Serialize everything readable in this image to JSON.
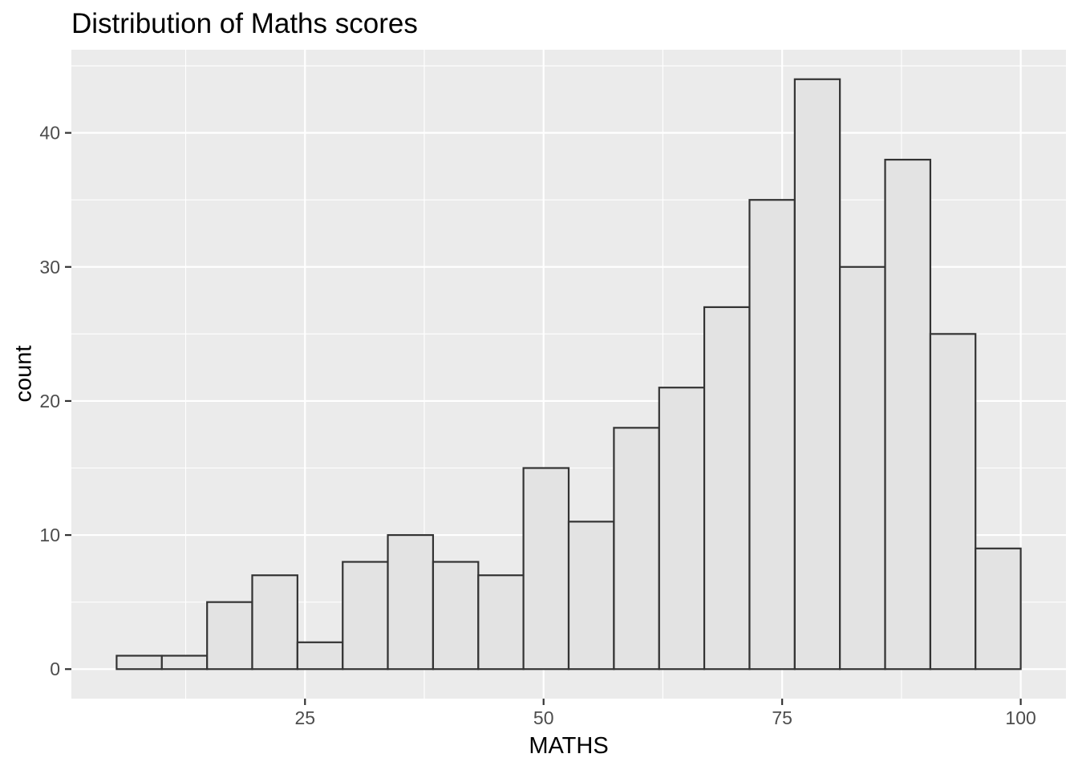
{
  "chart_data": {
    "type": "bar",
    "subtype": "histogram",
    "title": "Distribution of Maths scores",
    "xlabel": "MATHS",
    "ylabel": "count",
    "bin_edges": [
      5.26,
      10.0,
      14.74,
      19.47,
      24.21,
      28.95,
      33.68,
      38.42,
      43.16,
      47.89,
      52.63,
      57.37,
      62.11,
      66.84,
      71.58,
      76.32,
      81.05,
      85.79,
      90.53,
      95.26,
      100.0
    ],
    "counts": [
      1,
      1,
      5,
      7,
      2,
      8,
      10,
      8,
      7,
      15,
      11,
      18,
      21,
      27,
      35,
      44,
      30,
      38,
      25,
      9
    ],
    "x_ticks": [
      25,
      50,
      75,
      100
    ],
    "y_ticks": [
      0,
      10,
      20,
      30,
      40
    ],
    "xlim": [
      0.52,
      104.74
    ],
    "ylim": [
      -2.2,
      46.2
    ],
    "grid": "major+minor",
    "legend_position": "none",
    "colors": {
      "figure_background": "#FFFFFF",
      "panel_background": "#EBEBEB",
      "grid_line": "#FFFFFF",
      "bar_fill": "#E3E3E3",
      "bar_border": "#333333",
      "tick_mark": "#333333",
      "tick_label": "#4D4D4D",
      "title_text": "#000000"
    }
  }
}
